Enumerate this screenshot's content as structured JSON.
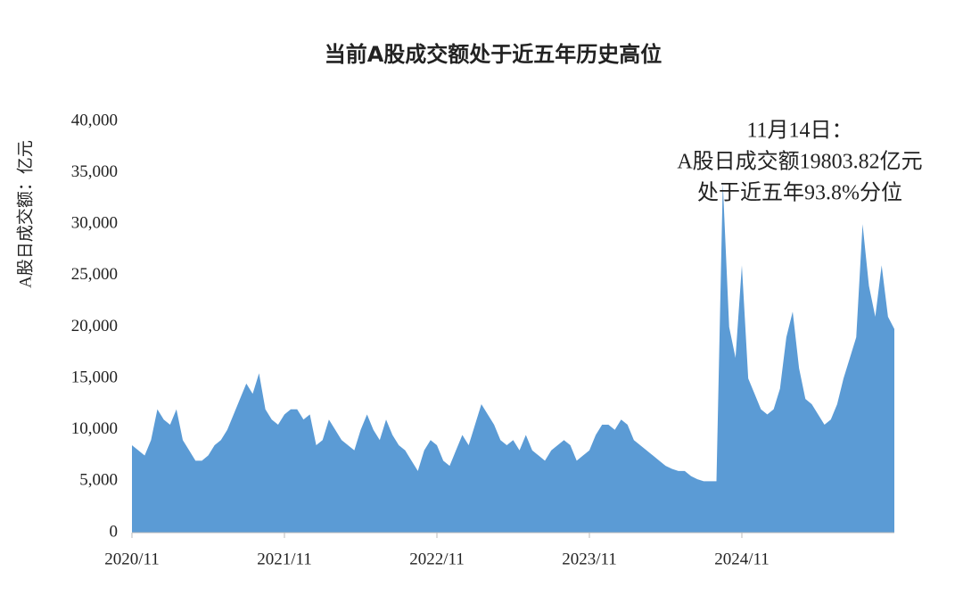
{
  "chart_data": {
    "type": "area",
    "title": "当前A股成交额处于近五年历史高位",
    "y_label": "A股日成交额：亿元",
    "annotation": [
      "11月14日：",
      "A股日成交额19803.82亿元",
      "处于近五年93.8%分位"
    ],
    "color": "#5b9bd5",
    "ylim": [
      0,
      40000
    ],
    "yticks": [
      0,
      {
        "value": 5000,
        "label": "5,000"
      },
      {
        "value": 10000,
        "label": "10,000"
      },
      {
        "value": 15000,
        "label": "15,000"
      },
      {
        "value": 20000,
        "label": "20,000"
      },
      {
        "value": 25000,
        "label": "25,000"
      },
      {
        "value": 30000,
        "label": "30,000"
      },
      {
        "value": 35000,
        "label": "35,000"
      },
      {
        "value": 40000,
        "label": "40,000"
      }
    ],
    "categories": [
      "2020/11",
      null,
      null,
      null,
      null,
      null,
      null,
      null,
      null,
      null,
      null,
      null,
      null,
      null,
      null,
      null,
      null,
      null,
      null,
      null,
      null,
      null,
      null,
      null,
      "2021/11",
      null,
      null,
      null,
      null,
      null,
      null,
      null,
      null,
      null,
      null,
      null,
      null,
      null,
      null,
      null,
      null,
      null,
      null,
      null,
      null,
      null,
      null,
      null,
      "2022/11",
      null,
      null,
      null,
      null,
      null,
      null,
      null,
      null,
      null,
      null,
      null,
      null,
      null,
      null,
      null,
      null,
      null,
      null,
      null,
      null,
      null,
      null,
      null,
      "2023/11",
      null,
      null,
      null,
      null,
      null,
      null,
      null,
      null,
      null,
      null,
      null,
      null,
      null,
      null,
      null,
      null,
      null,
      null,
      null,
      null,
      null,
      null,
      null,
      "2024/11",
      null,
      null,
      null,
      null,
      null,
      null,
      null,
      null,
      null,
      null,
      null,
      null,
      null,
      null,
      null,
      null,
      null,
      null,
      null,
      null,
      null,
      null,
      null,
      null
    ],
    "values": [
      8500,
      8000,
      7500,
      9000,
      12000,
      11000,
      10500,
      12000,
      9000,
      8000,
      7000,
      7000,
      7500,
      8500,
      9000,
      10000,
      11500,
      13000,
      14500,
      13500,
      15500,
      12000,
      11000,
      10500,
      11500,
      12000,
      12000,
      11000,
      11500,
      8500,
      9000,
      11000,
      10000,
      9000,
      8500,
      8000,
      10000,
      11500,
      10000,
      9000,
      11000,
      9500,
      8500,
      8000,
      7000,
      6000,
      8000,
      9000,
      8500,
      7000,
      6500,
      8000,
      9500,
      8500,
      10500,
      12500,
      11500,
      10500,
      9000,
      8500,
      9000,
      8000,
      9500,
      8000,
      7500,
      7000,
      8000,
      8500,
      9000,
      8500,
      7000,
      7500,
      8000,
      9500,
      10500,
      10500,
      10000,
      11000,
      10500,
      9000,
      8500,
      8000,
      7500,
      7000,
      6500,
      6200,
      6000,
      6000,
      5500,
      5200,
      5000,
      5000,
      5000,
      34000,
      20000,
      17000,
      26000,
      15000,
      13500,
      12000,
      11500,
      12000,
      14000,
      19000,
      21500,
      16000,
      13000,
      12500,
      11500,
      10500,
      11000,
      12500,
      15000,
      17000,
      19000,
      30000,
      24000,
      21000,
      26000,
      21000,
      19803.82
    ]
  }
}
